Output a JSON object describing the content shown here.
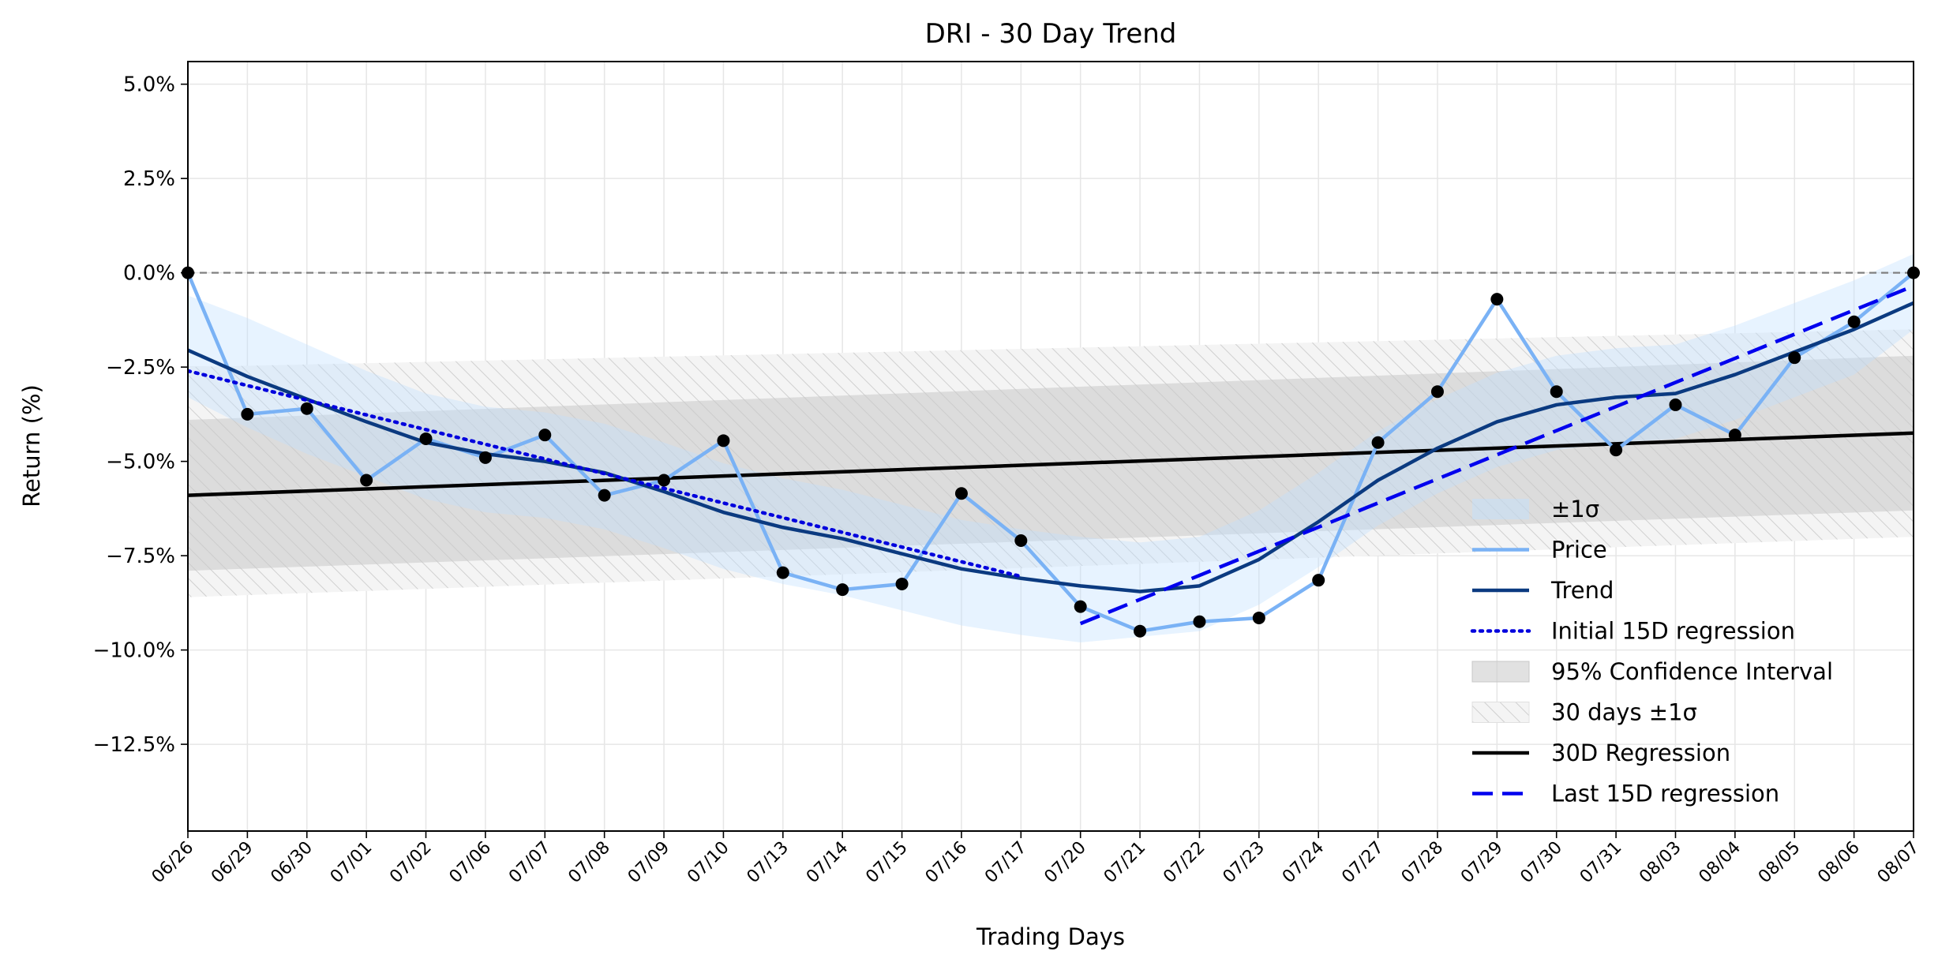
{
  "chart_data": {
    "type": "line",
    "title": "DRI - 30 Day Trend",
    "xlabel": "Trading Days",
    "ylabel": "Return (%)",
    "ylim": [
      -14.8,
      5.6
    ],
    "yticks": [
      5.0,
      2.5,
      0.0,
      -2.5,
      -5.0,
      -7.5,
      -10.0,
      -12.5
    ],
    "ytick_labels": [
      "5.0%",
      "2.5%",
      "0.0%",
      "−2.5%",
      "−5.0%",
      "−7.5%",
      "−10.0%",
      "−12.5%"
    ],
    "categories": [
      "06/26",
      "06/29",
      "06/30",
      "07/01",
      "07/02",
      "07/06",
      "07/07",
      "07/08",
      "07/09",
      "07/10",
      "07/13",
      "07/14",
      "07/15",
      "07/16",
      "07/17",
      "07/20",
      "07/21",
      "07/22",
      "07/23",
      "07/24",
      "07/27",
      "07/28",
      "07/29",
      "07/30",
      "07/31",
      "08/03",
      "08/04",
      "08/05",
      "08/06",
      "08/07"
    ],
    "grid": true,
    "legend_position": "lower-right",
    "reference_line": 0.0,
    "series": [
      {
        "name": "Price",
        "color": "#7ab2f5",
        "values": [
          0.0,
          -3.75,
          -3.6,
          -5.5,
          -4.4,
          -4.9,
          -4.3,
          -5.9,
          -5.5,
          -4.45,
          -7.95,
          -8.4,
          -8.25,
          -5.85,
          -7.1,
          -8.85,
          -9.5,
          -9.25,
          -9.15,
          -8.15,
          -4.5,
          -3.15,
          -0.7,
          -3.15,
          -4.7,
          -3.5,
          -4.3,
          -2.25,
          -1.3,
          0.0
        ]
      },
      {
        "name": "Trend",
        "color": "#0b3a80",
        "values": [
          -2.05,
          -2.75,
          -3.35,
          -3.95,
          -4.5,
          -4.8,
          -5.0,
          -5.3,
          -5.8,
          -6.35,
          -6.75,
          -7.05,
          -7.45,
          -7.85,
          -8.1,
          -8.3,
          -8.45,
          -8.3,
          -7.6,
          -6.6,
          -5.5,
          -4.65,
          -3.95,
          -3.5,
          -3.3,
          -3.2,
          -2.7,
          -2.1,
          -1.5,
          -0.8
        ]
      },
      {
        "name": "Initial 15D regression",
        "color": "#0000dd",
        "style": "dotted",
        "x_range": [
          0,
          14
        ],
        "y_range": [
          -2.6,
          -8.05
        ]
      },
      {
        "name": "Last 15D regression",
        "color": "#0000ee",
        "style": "dashed",
        "x_range": [
          15,
          29
        ],
        "y_range": [
          -9.3,
          -0.35
        ]
      },
      {
        "name": "30D Regression",
        "color": "#000000",
        "x_range": [
          0,
          29
        ],
        "y_range": [
          -5.9,
          -4.25
        ]
      },
      {
        "name": "±1σ",
        "color": "#ddeeff",
        "style": "band",
        "upper": [
          -0.6,
          -1.2,
          -1.9,
          -2.6,
          -3.2,
          -3.55,
          -3.7,
          -4.0,
          -4.5,
          -5.05,
          -5.45,
          -5.75,
          -6.15,
          -6.55,
          -6.8,
          -7.0,
          -7.15,
          -7.0,
          -6.3,
          -5.3,
          -4.2,
          -3.35,
          -2.65,
          -2.2,
          -2.0,
          -1.9,
          -1.4,
          -0.8,
          -0.2,
          0.5
        ],
        "lower": [
          -3.3,
          -4.1,
          -4.8,
          -5.4,
          -6.0,
          -6.35,
          -6.5,
          -6.8,
          -7.3,
          -7.85,
          -8.25,
          -8.55,
          -8.95,
          -9.35,
          -9.6,
          -9.8,
          -9.65,
          -9.5,
          -8.8,
          -7.8,
          -6.7,
          -5.85,
          -5.15,
          -4.7,
          -4.5,
          -4.4,
          -3.9,
          -3.3,
          -2.7,
          -1.5
        ]
      },
      {
        "name": "95% Confidence Interval",
        "color": "#d3d3d3",
        "style": "band",
        "upper_range": [
          -3.9,
          -2.2
        ],
        "lower_range": [
          -7.9,
          -6.3
        ]
      },
      {
        "name": "30 days ±1σ",
        "color": "#e8e8e8",
        "style": "hatched-band",
        "upper_range": [
          -2.5,
          -1.5
        ],
        "lower_range": [
          -8.6,
          -7.0
        ]
      }
    ],
    "markers": {
      "color": "#000000",
      "values_from": "Price"
    }
  }
}
